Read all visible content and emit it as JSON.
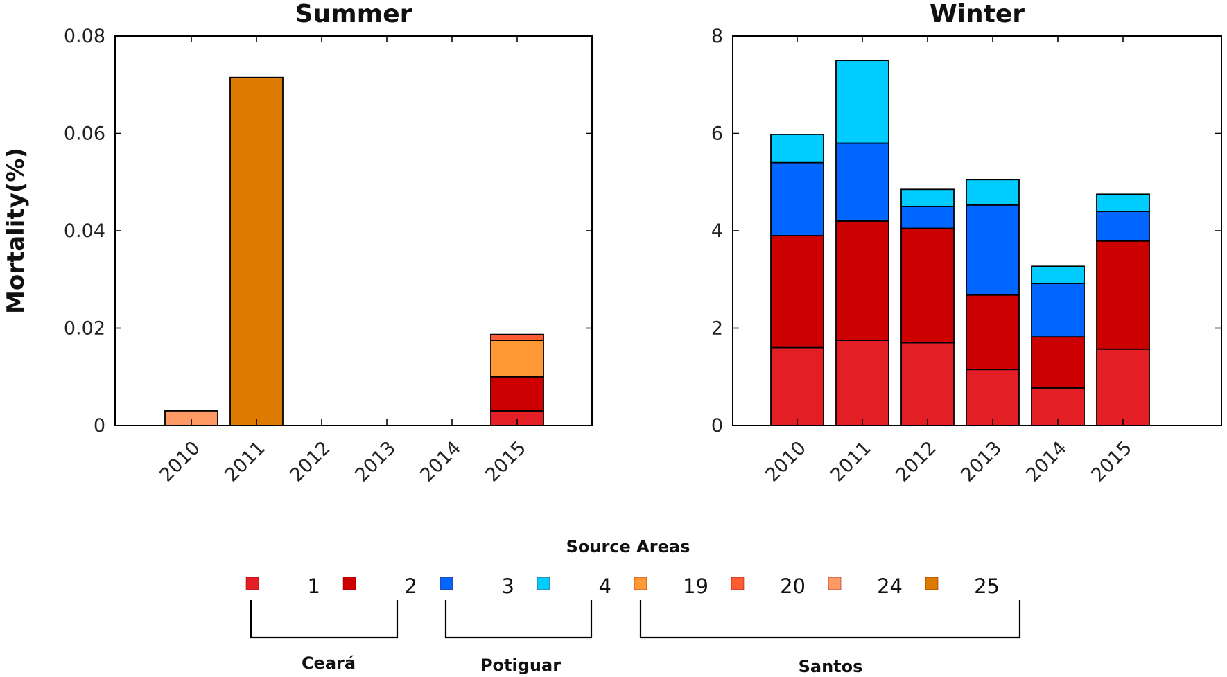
{
  "chart_data": [
    {
      "type": "bar",
      "stacked": true,
      "title": "Summer",
      "ylabel": "Mortality(%)",
      "categories": [
        "2010",
        "2011",
        "2012",
        "2013",
        "2014",
        "2015"
      ],
      "ylim": [
        0,
        0.08
      ],
      "yticks": [
        "0",
        "0.02",
        "0.04",
        "0.06",
        "0.08"
      ],
      "series": [
        {
          "name": "1",
          "color": "#e31e24",
          "values": [
            0,
            0,
            0,
            0,
            0,
            0.003
          ]
        },
        {
          "name": "2",
          "color": "#cc0000",
          "values": [
            0,
            0,
            0,
            0,
            0,
            0.007
          ]
        },
        {
          "name": "3",
          "color": "#0066ff",
          "values": [
            0,
            0,
            0,
            0,
            0,
            0
          ]
        },
        {
          "name": "4",
          "color": "#00ccff",
          "values": [
            0,
            0,
            0,
            0,
            0,
            0
          ]
        },
        {
          "name": "19",
          "color": "#ff9933",
          "values": [
            0,
            0,
            0,
            0,
            0,
            0.0075
          ]
        },
        {
          "name": "20",
          "color": "#ff5c33",
          "values": [
            0,
            0,
            0,
            0,
            0,
            0.0012
          ]
        },
        {
          "name": "24",
          "color": "#ff9966",
          "values": [
            0.003,
            0,
            0,
            0,
            0,
            0
          ]
        },
        {
          "name": "25",
          "color": "#dd7a00",
          "values": [
            0,
            0.0715,
            0,
            0,
            0,
            0
          ]
        }
      ]
    },
    {
      "type": "bar",
      "stacked": true,
      "title": "Winter",
      "categories": [
        "2010",
        "2011",
        "2012",
        "2013",
        "2014",
        "2015"
      ],
      "ylim": [
        0,
        8
      ],
      "yticks": [
        "0",
        "2",
        "4",
        "6",
        "8"
      ],
      "series": [
        {
          "name": "1",
          "color": "#e31e24",
          "values": [
            1.6,
            1.75,
            1.7,
            1.15,
            0.77,
            1.57
          ]
        },
        {
          "name": "2",
          "color": "#cc0000",
          "values": [
            2.3,
            2.45,
            2.35,
            1.53,
            1.05,
            2.22
          ]
        },
        {
          "name": "3",
          "color": "#0066ff",
          "values": [
            1.5,
            1.6,
            0.45,
            1.85,
            1.1,
            0.61
          ]
        },
        {
          "name": "4",
          "color": "#00ccff",
          "values": [
            0.58,
            1.7,
            0.35,
            0.52,
            0.35,
            0.35
          ]
        },
        {
          "name": "19",
          "color": "#ff9933",
          "values": [
            0,
            0,
            0,
            0,
            0,
            0
          ]
        },
        {
          "name": "20",
          "color": "#ff5c33",
          "values": [
            0,
            0,
            0,
            0,
            0,
            0
          ]
        },
        {
          "name": "24",
          "color": "#ff9966",
          "values": [
            0,
            0,
            0,
            0,
            0,
            0
          ]
        },
        {
          "name": "25",
          "color": "#dd7a00",
          "values": [
            0,
            0,
            0,
            0,
            0,
            0
          ]
        }
      ]
    }
  ],
  "legend": {
    "title": "Source Areas",
    "items": [
      {
        "label": "1",
        "color": "#e31e24"
      },
      {
        "label": "2",
        "color": "#cc0000"
      },
      {
        "label": "3",
        "color": "#0066ff"
      },
      {
        "label": "4",
        "color": "#00ccff"
      },
      {
        "label": "19",
        "color": "#ff9933"
      },
      {
        "label": "20",
        "color": "#ff5c33"
      },
      {
        "label": "24",
        "color": "#ff9966"
      },
      {
        "label": "25",
        "color": "#dd7a00"
      }
    ],
    "groups": [
      {
        "label": "Ceará"
      },
      {
        "label": "Potiguar"
      },
      {
        "label": "Santos"
      }
    ]
  }
}
